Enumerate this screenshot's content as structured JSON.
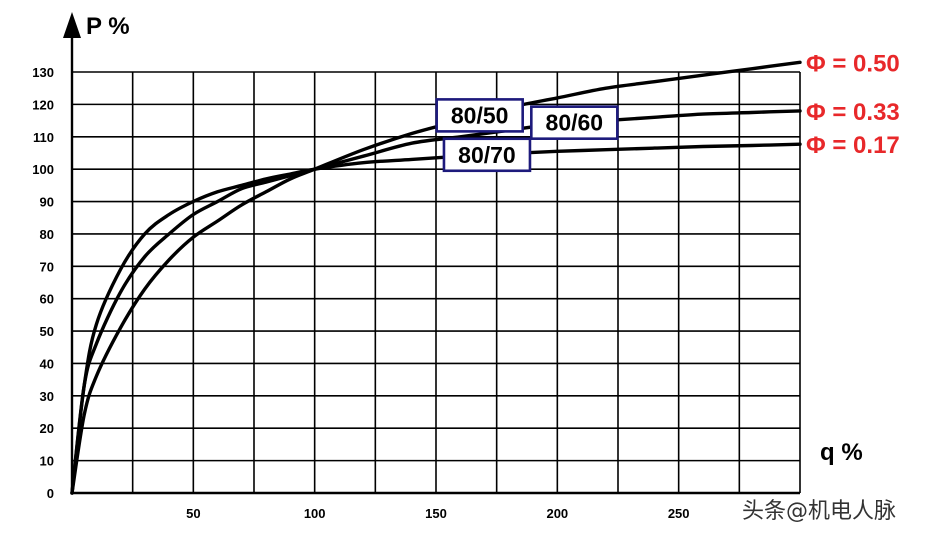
{
  "chart_data": {
    "type": "line",
    "xlabel": "q %",
    "ylabel": "P %",
    "xlim": [
      0,
      300
    ],
    "ylim": [
      0,
      130
    ],
    "x_ticks": [
      50,
      100,
      150,
      200,
      250
    ],
    "y_ticks": [
      0,
      10,
      20,
      30,
      40,
      50,
      60,
      70,
      80,
      90,
      100,
      110,
      120,
      130
    ],
    "grid": true,
    "series": [
      {
        "name": "80/50",
        "phi_label": "Φ = 0.50",
        "x": [
          0,
          5,
          10,
          20,
          30,
          40,
          50,
          60,
          70,
          80,
          90,
          100,
          120,
          140,
          160,
          180,
          200,
          220,
          240,
          260,
          280,
          300
        ],
        "y": [
          0,
          24,
          36,
          51,
          63,
          72,
          79,
          84,
          89,
          93,
          97,
          100,
          106,
          111,
          115,
          119,
          122,
          125,
          127,
          129,
          131,
          133
        ]
      },
      {
        "name": "80/60",
        "phi_label": "Φ = 0.33",
        "x": [
          0,
          5,
          10,
          20,
          30,
          40,
          50,
          60,
          70,
          80,
          90,
          100,
          120,
          140,
          160,
          180,
          200,
          220,
          240,
          260,
          280,
          300
        ],
        "y": [
          0,
          33,
          46,
          62,
          73,
          80,
          86,
          90,
          94,
          96,
          98,
          100,
          104,
          108,
          110,
          112,
          114,
          115,
          116,
          117,
          117.5,
          118
        ]
      },
      {
        "name": "80/70",
        "phi_label": "Φ = 0.17",
        "x": [
          0,
          5,
          10,
          20,
          30,
          40,
          50,
          60,
          70,
          80,
          90,
          100,
          120,
          140,
          160,
          180,
          200,
          220,
          240,
          260,
          280,
          300
        ],
        "y": [
          0,
          33,
          52,
          69,
          80,
          86,
          90,
          93,
          95,
          97,
          98.5,
          100,
          102,
          103,
          104,
          104.8,
          105.5,
          106,
          106.5,
          107,
          107.3,
          107.7
        ]
      }
    ]
  },
  "colors": {
    "curve": "#000000",
    "grid": "#000000",
    "phi": "#e8282a",
    "box_border": "#1d1a7c"
  },
  "watermark": "头条@机电人脉"
}
